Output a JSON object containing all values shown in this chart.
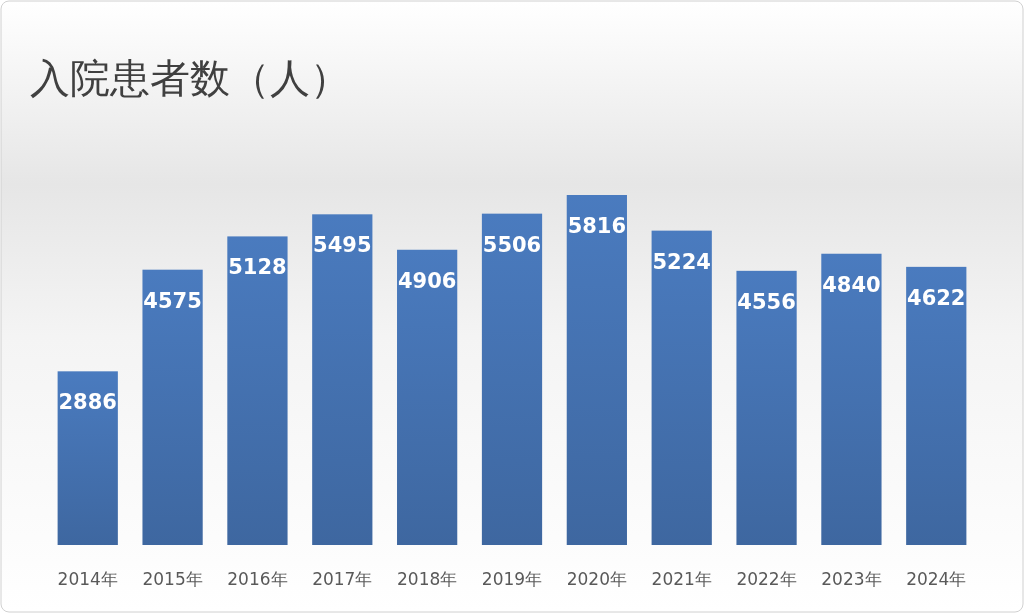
{
  "chart_data": {
    "type": "bar",
    "title": "入院患者数（人）",
    "categories": [
      "2014年",
      "2015年",
      "2016年",
      "2017年",
      "2018年",
      "2019年",
      "2020年",
      "2021年",
      "2022年",
      "2023年",
      "2024年"
    ],
    "values": [
      2886,
      4575,
      5128,
      5495,
      4906,
      5506,
      5816,
      5224,
      4556,
      4840,
      4622
    ],
    "color": "#4a7bbf",
    "data_labels": true
  }
}
